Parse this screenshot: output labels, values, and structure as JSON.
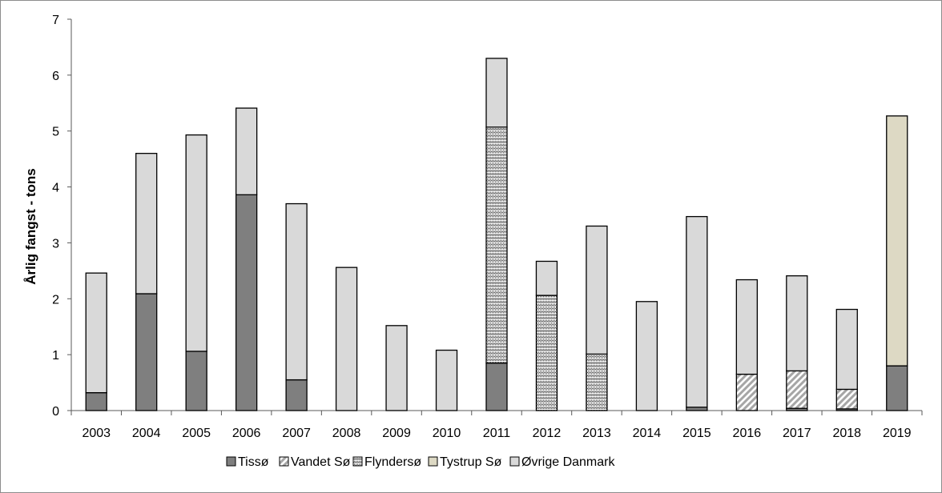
{
  "chart_data": {
    "type": "bar",
    "stacked": true,
    "ylabel": "Årlig fangst - tons",
    "xlabel": "",
    "ylim": [
      0,
      7
    ],
    "yticks": [
      0,
      1,
      2,
      3,
      4,
      5,
      6,
      7
    ],
    "grid": false,
    "legend_position": "bottom",
    "categories": [
      "2003",
      "2004",
      "2005",
      "2006",
      "2007",
      "2008",
      "2009",
      "2010",
      "2011",
      "2012",
      "2013",
      "2014",
      "2015",
      "2016",
      "2017",
      "2018",
      "2019"
    ],
    "series": [
      {
        "name": "Tissø",
        "pattern": "solid-dark",
        "color": "#7f7f7f",
        "values": [
          0.32,
          2.09,
          1.06,
          3.86,
          0.55,
          0,
          0,
          0,
          0.85,
          0,
          0,
          0,
          0.06,
          0,
          0.04,
          0.03,
          0.8
        ]
      },
      {
        "name": "Vandet Sø",
        "pattern": "diagonal-stripes",
        "color": "#a6a6a6",
        "values": [
          0,
          0,
          0,
          0,
          0,
          0,
          0,
          0,
          0,
          0,
          0,
          0,
          0,
          0.65,
          0.67,
          0.35,
          0
        ]
      },
      {
        "name": "Flyndersø",
        "pattern": "checker",
        "color": "#404040",
        "values": [
          0,
          0,
          0,
          0,
          0,
          0,
          0,
          0,
          4.22,
          2.06,
          1.01,
          0,
          0,
          0,
          0,
          0,
          0
        ]
      },
      {
        "name": "Tystrup Sø",
        "pattern": "solid-beige",
        "color": "#ddd9c4",
        "values": [
          0,
          0,
          0,
          0,
          0,
          0,
          0,
          0,
          0,
          0,
          0,
          0,
          0,
          0,
          0,
          0,
          4.47
        ]
      },
      {
        "name": "Øvrige Danmark",
        "pattern": "solid-light",
        "color": "#d9d9d9",
        "values": [
          2.14,
          2.51,
          3.87,
          1.55,
          3.15,
          2.56,
          1.52,
          1.08,
          1.23,
          0.61,
          2.29,
          1.95,
          3.41,
          1.69,
          1.7,
          1.43,
          0
        ]
      }
    ]
  }
}
